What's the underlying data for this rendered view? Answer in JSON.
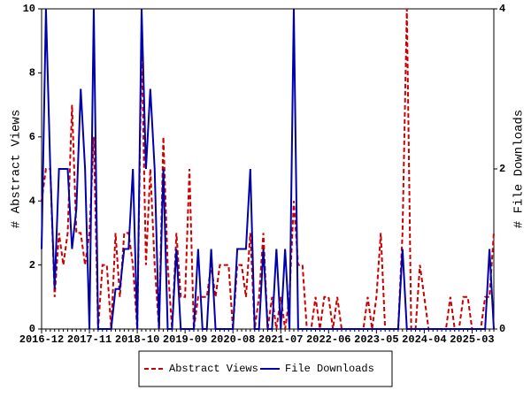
{
  "chart_data": {
    "type": "line",
    "categories": [
      "2016-12",
      null,
      null,
      null,
      null,
      null,
      null,
      null,
      null,
      null,
      null,
      "2017-11",
      null,
      null,
      null,
      null,
      null,
      null,
      null,
      null,
      null,
      null,
      "2018-10",
      null,
      null,
      null,
      null,
      null,
      null,
      null,
      null,
      null,
      null,
      "2019-09",
      null,
      null,
      null,
      null,
      null,
      null,
      null,
      null,
      null,
      null,
      "2020-08",
      null,
      null,
      null,
      null,
      null,
      null,
      null,
      null,
      null,
      null,
      "2021-07",
      null,
      null,
      null,
      null,
      null,
      null,
      null,
      null,
      null,
      null,
      "2022-06",
      null,
      null,
      null,
      null,
      null,
      null,
      null,
      null,
      null,
      null,
      "2023-05",
      null,
      null,
      null,
      null,
      null,
      null,
      null,
      null,
      null,
      null,
      "2024-04",
      null,
      null,
      null,
      null,
      null,
      null,
      null,
      null,
      null,
      null,
      "2025-03",
      null,
      null,
      null,
      null,
      null
    ],
    "y_label": "# Abstract Views",
    "y2_label": "# File Downloads",
    "ylim": [
      0,
      10
    ],
    "yticks": [
      0,
      2,
      4,
      6,
      8,
      10
    ],
    "y2lim": [
      0,
      4
    ],
    "y2ticks": [
      0,
      2,
      4
    ],
    "legend": "bottom",
    "series": [
      {
        "name": "Abstract Views",
        "color": "#cc0000",
        "dash": true,
        "values": [
          4,
          5,
          5,
          1,
          3,
          2,
          3,
          7,
          3,
          3,
          2,
          3,
          6,
          0,
          2,
          2,
          0,
          3,
          1,
          3,
          3,
          2,
          0,
          9,
          2,
          5,
          2,
          0,
          6,
          2,
          0,
          3,
          1,
          1,
          5,
          0,
          1,
          1,
          1,
          2,
          1,
          2,
          2,
          2,
          0,
          2,
          2,
          1,
          3,
          0,
          1,
          3,
          0,
          1,
          0,
          1,
          0,
          1,
          4,
          2,
          2,
          0,
          0,
          1,
          0,
          1,
          1,
          0,
          1,
          0,
          0,
          0,
          0,
          0,
          0,
          1,
          0,
          1,
          3,
          0,
          0,
          0,
          0,
          3,
          10,
          0,
          0,
          2,
          1,
          0,
          0,
          0,
          0,
          0,
          1,
          0,
          0,
          1,
          1,
          0,
          0,
          0,
          1,
          1,
          3
        ]
      },
      {
        "name": "File Downloads",
        "color": "#0000aa",
        "axis": "y2",
        "values": [
          1,
          4,
          2,
          0.5,
          2,
          2,
          2,
          1,
          1.5,
          3,
          2,
          0,
          4,
          0,
          0,
          0,
          0,
          0.5,
          0.5,
          1,
          1,
          2,
          0,
          4,
          2,
          3,
          2,
          0,
          2,
          0,
          0,
          1,
          0,
          0,
          0,
          0,
          1,
          0,
          0,
          1,
          0,
          0,
          0,
          0,
          0,
          1,
          1,
          1,
          2,
          0,
          0,
          1,
          0,
          0,
          1,
          0,
          1,
          0,
          4,
          0,
          0,
          0,
          0,
          0,
          0,
          0,
          0,
          0,
          0,
          0,
          0,
          0,
          0,
          0,
          0,
          0,
          0,
          0,
          0,
          0,
          0,
          0,
          0,
          1,
          0,
          0,
          0,
          0,
          0,
          0,
          0,
          0,
          0,
          0,
          0,
          0,
          0,
          0,
          0,
          0,
          0,
          0,
          0,
          1,
          0
        ]
      }
    ]
  }
}
